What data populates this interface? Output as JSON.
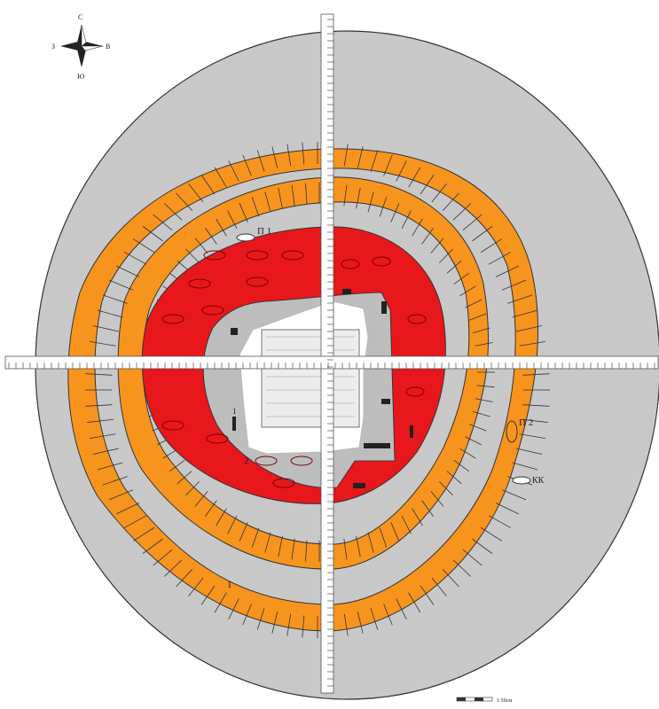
{
  "compass": {
    "north": "С",
    "west": "З",
    "east": "В",
    "south": "Ю"
  },
  "labels": {
    "burial_1": "П 1",
    "burial_2": "П 2",
    "kk": "КК",
    "zone_1": "1",
    "zone_2": "2",
    "zone_1_small": "1"
  },
  "scale_bar": {
    "label": "1:50см"
  },
  "colors": {
    "background": "#c8c8c8",
    "outer_ring": "#f7941d",
    "inner_zone": "#e8171b",
    "center": "#ffffff",
    "grid": "#b0b0b0"
  }
}
